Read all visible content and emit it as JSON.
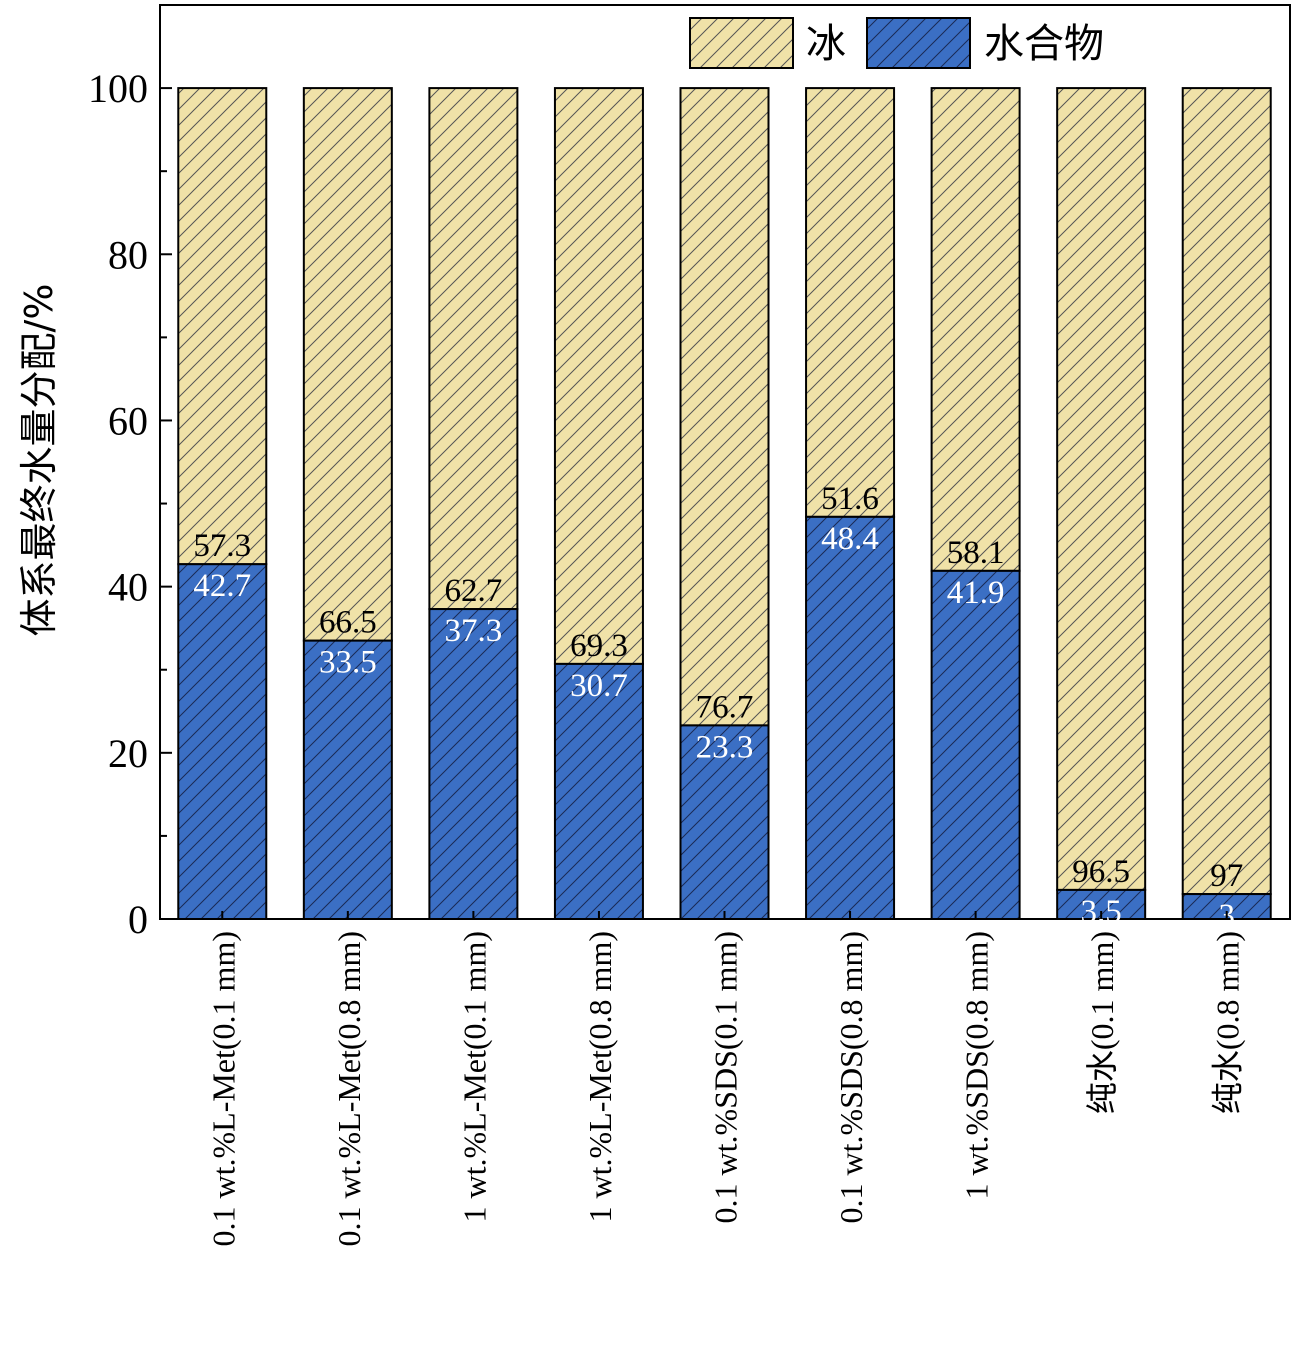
{
  "chart_data": {
    "type": "bar",
    "stacked": true,
    "title": "",
    "xlabel": "",
    "ylabel": "体系最终水量分配/%",
    "ylim": [
      0,
      110
    ],
    "yticks": [
      0,
      20,
      40,
      60,
      80,
      100
    ],
    "legend_position": "top-right",
    "categories": [
      "0.1 wt.%L-Met(0.1 mm)",
      "0.1 wt.%L-Met(0.8 mm)",
      "1 wt.%L-Met(0.1 mm)",
      "1 wt.%L-Met(0.8 mm)",
      "0.1 wt.%SDS(0.1 mm)",
      "0.1 wt.%SDS(0.8 mm)",
      "1 wt.%SDS(0.8 mm)",
      "纯水(0.1 mm)",
      "纯水(0.8 mm)"
    ],
    "series": [
      {
        "name": "水合物",
        "color": "#3b6fc4",
        "values": [
          42.7,
          33.5,
          37.3,
          30.7,
          23.3,
          48.4,
          41.9,
          3.5,
          3
        ]
      },
      {
        "name": "冰",
        "color": "#f0e2a8",
        "values": [
          57.3,
          66.5,
          62.7,
          69.3,
          76.7,
          51.6,
          58.1,
          96.5,
          97
        ]
      }
    ]
  }
}
